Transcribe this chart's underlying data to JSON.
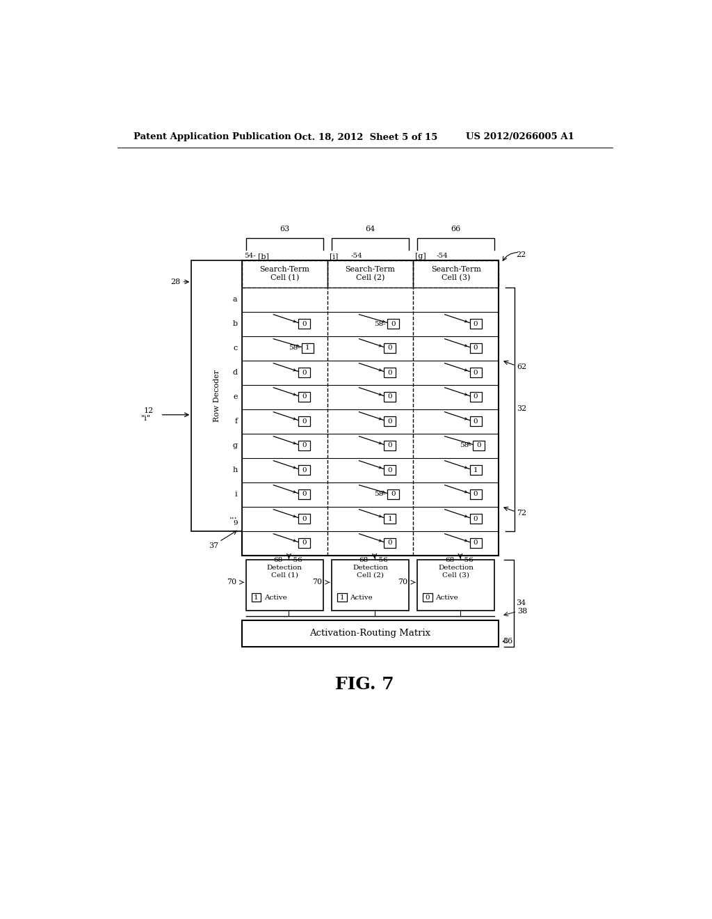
{
  "header_left": "Patent Application Publication",
  "header_mid": "Oct. 18, 2012  Sheet 5 of 15",
  "header_right": "US 2012/0266005 A1",
  "fig_label": "FIG. 7",
  "bg_color": "#ffffff",
  "diagram": {
    "row_decoder_label": "Row Decoder",
    "row_labels": [
      "a",
      "b",
      "c",
      "d",
      "e",
      "f",
      "g",
      "h",
      "i",
      "...\n9",
      ""
    ],
    "col_labels": [
      "[b]",
      "[i]",
      "[g]"
    ],
    "col_header": [
      "Search-Term\nCell (1)",
      "Search-Term\nCell (2)",
      "Search-Term\nCell (3)"
    ],
    "cell_values": [
      [
        "",
        "",
        ""
      ],
      [
        "0",
        "0",
        "0"
      ],
      [
        "1",
        "0",
        "0"
      ],
      [
        "0",
        "0",
        "0"
      ],
      [
        "0",
        "0",
        "0"
      ],
      [
        "0",
        "0",
        "0"
      ],
      [
        "0",
        "0",
        "0"
      ],
      [
        "0",
        "0",
        "1"
      ],
      [
        "0",
        "0",
        "0"
      ],
      [
        "0",
        "1",
        "0"
      ],
      [
        "0",
        "0",
        "0"
      ]
    ],
    "cell_58": [
      [
        false,
        false,
        false
      ],
      [
        false,
        true,
        false
      ],
      [
        true,
        false,
        false
      ],
      [
        false,
        false,
        false
      ],
      [
        false,
        false,
        false
      ],
      [
        false,
        false,
        false
      ],
      [
        false,
        false,
        true
      ],
      [
        false,
        false,
        false
      ],
      [
        false,
        true,
        false
      ],
      [
        false,
        false,
        false
      ],
      [
        false,
        false,
        false
      ]
    ],
    "detection_cells": [
      {
        "label": "Detection\nCell (1)",
        "value": "1",
        "status": "Active"
      },
      {
        "label": "Detection\nCell (2)",
        "value": "1",
        "status": "Active"
      },
      {
        "label": "Detection\nCell (3)",
        "value": "0",
        "status": "Active"
      }
    ],
    "arm_matrix_label": "Activation-Routing Matrix"
  }
}
